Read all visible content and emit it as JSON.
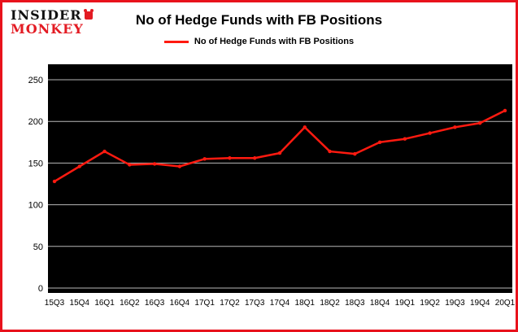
{
  "brand": {
    "line1": "INSIDER",
    "line2": "MONKEY"
  },
  "title": "No of Hedge Funds with FB Positions",
  "legend": {
    "label": "No of Hedge Funds with FB Positions"
  },
  "colors": {
    "border_red": "#e8121c",
    "logo_red": "#e31b23",
    "line_red": "#ff1a10",
    "plot_bg": "#000000",
    "grid_gray": "#b8b8b8",
    "tick_text": "#000000"
  },
  "chart_data": {
    "type": "line",
    "title": "No of Hedge Funds with FB Positions",
    "categories": [
      "15Q3",
      "15Q4",
      "16Q1",
      "16Q2",
      "16Q3",
      "16Q4",
      "17Q1",
      "17Q2",
      "17Q3",
      "17Q4",
      "18Q1",
      "18Q2",
      "18Q3",
      "18Q4",
      "19Q1",
      "19Q2",
      "19Q3",
      "19Q4",
      "20Q1"
    ],
    "values": [
      128,
      146,
      164,
      148,
      149,
      146,
      155,
      156,
      156,
      162,
      193,
      164,
      161,
      175,
      179,
      186,
      193,
      198,
      213
    ],
    "series_name": "No of Hedge Funds with FB Positions",
    "xlabel": "",
    "ylabel": "",
    "ylim": [
      0,
      250
    ],
    "yticks": [
      0,
      50,
      100,
      150,
      200,
      250
    ],
    "grid": true,
    "legend_position": "top-center",
    "plot_background": "#000000",
    "line_color": "#ff1a10"
  }
}
